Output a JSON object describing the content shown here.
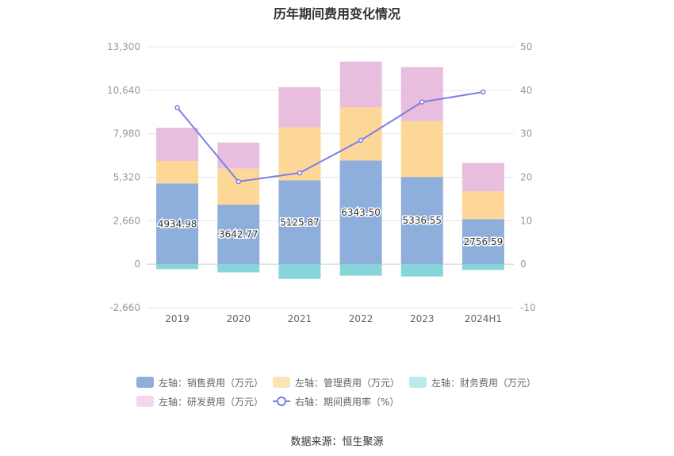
{
  "chart_data": {
    "type": "bar",
    "title": "历年期间费用变化情况",
    "categories": [
      "2019",
      "2020",
      "2021",
      "2022",
      "2023",
      "2024H1"
    ],
    "left_axis": {
      "ticks": [
        "13,300",
        "10,640",
        "7,980",
        "5,320",
        "2,660",
        "0",
        "-2,660"
      ],
      "ylim": [
        -2660,
        13300
      ]
    },
    "right_axis": {
      "ticks": [
        "50",
        "40",
        "30",
        "20",
        "10",
        "0",
        "-10"
      ],
      "ylim": [
        -10,
        50
      ]
    },
    "stacked": true,
    "series": [
      {
        "name": "左轴：销售费用（万元）",
        "values": [
          4934.98,
          3642.77,
          5125.87,
          6343.5,
          5336.55,
          2756.59
        ],
        "color": "#8eaedb",
        "labels": [
          "4934.98",
          "3642.77",
          "5125.87",
          "6343.50",
          "5336.55",
          "2756.59"
        ]
      },
      {
        "name": "左轴：管理费用（万元）",
        "values": [
          1380,
          2200,
          3250,
          3250,
          3420,
          1700
        ],
        "color": "#fdd797"
      },
      {
        "name": "左轴：财务费用（万元）",
        "values": [
          -300,
          -500,
          -900,
          -700,
          -750,
          -350
        ],
        "color": "#86d6d9"
      },
      {
        "name": "左轴：研发费用（万元）",
        "values": [
          2030,
          1600,
          2450,
          2800,
          3300,
          1740
        ],
        "color": "#e8bddd"
      },
      {
        "name": "右轴：期间费用率（%）",
        "type": "line",
        "axis": "right",
        "values": [
          36.0,
          19.0,
          21.0,
          28.5,
          37.3,
          39.6
        ],
        "color": "#7b7fe8"
      }
    ],
    "legend_position": "bottom",
    "grid": true
  },
  "legend": [
    {
      "label": "左轴：销售费用（万元）",
      "color": "#8eaedb"
    },
    {
      "label": "左轴：管理费用（万元）",
      "color": "#fde3b8"
    },
    {
      "label": "左轴：财务费用（万元）",
      "color": "#bde9ea"
    },
    {
      "label": "左轴：研发费用（万元）",
      "color": "#f3d7ec"
    },
    {
      "label": "右轴：期间费用率（%）",
      "color": "#7b7fe8",
      "line": true
    }
  ],
  "source": "数据来源：恒生聚源"
}
